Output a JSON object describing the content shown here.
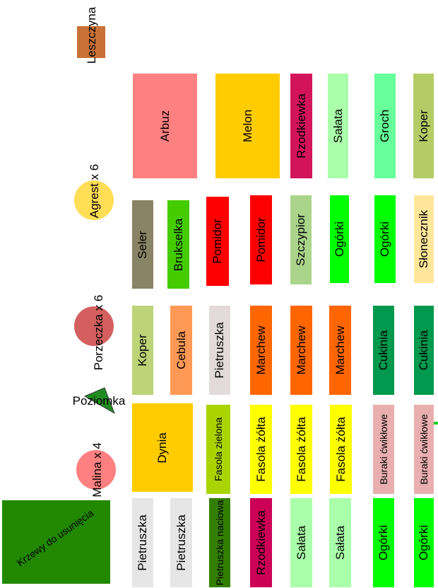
{
  "items": [
    {
      "label": "Leszczyna"
    },
    {
      "label": "Arbuz"
    },
    {
      "label": "Melon"
    },
    {
      "label": "Rzodkiewka"
    },
    {
      "label": "Sałata"
    },
    {
      "label": "Groch"
    },
    {
      "label": "Koper"
    },
    {
      "label": "Agrest x 6"
    },
    {
      "label": "Seler"
    },
    {
      "label": "Brukselka"
    },
    {
      "label": "Pomidor"
    },
    {
      "label": "Pomidor"
    },
    {
      "label": "Szczypior"
    },
    {
      "label": "Ogórki"
    },
    {
      "label": "Ogórki"
    },
    {
      "label": "Słonecznik"
    },
    {
      "label": "Porzeczka x 6"
    },
    {
      "label": "Koper"
    },
    {
      "label": "Cebula"
    },
    {
      "label": "Pietruszka"
    },
    {
      "label": "Marchew"
    },
    {
      "label": "Marchew"
    },
    {
      "label": "Marchew"
    },
    {
      "label": "Cukinia"
    },
    {
      "label": "Cukinia"
    },
    {
      "label": "Poziomka"
    },
    {
      "label": "Malina x 4"
    },
    {
      "label": "Dynia"
    },
    {
      "label": "Fasola zielona"
    },
    {
      "label": "Fasola żółta"
    },
    {
      "label": "Fasola żółta"
    },
    {
      "label": "Fasola żółta"
    },
    {
      "label": "Buraki ćwikłowe"
    },
    {
      "label": "Buraki ćwikłowe"
    },
    {
      "label": "Krzewy do usunięcia"
    },
    {
      "label": "Pietruszka"
    },
    {
      "label": "Pietruszka"
    },
    {
      "label": "Pietruszka naciowa"
    },
    {
      "label": "Rzodkiewka"
    },
    {
      "label": "Sałata"
    },
    {
      "label": "Sałata"
    },
    {
      "label": "Ogórki"
    },
    {
      "label": "Ogórki"
    }
  ]
}
